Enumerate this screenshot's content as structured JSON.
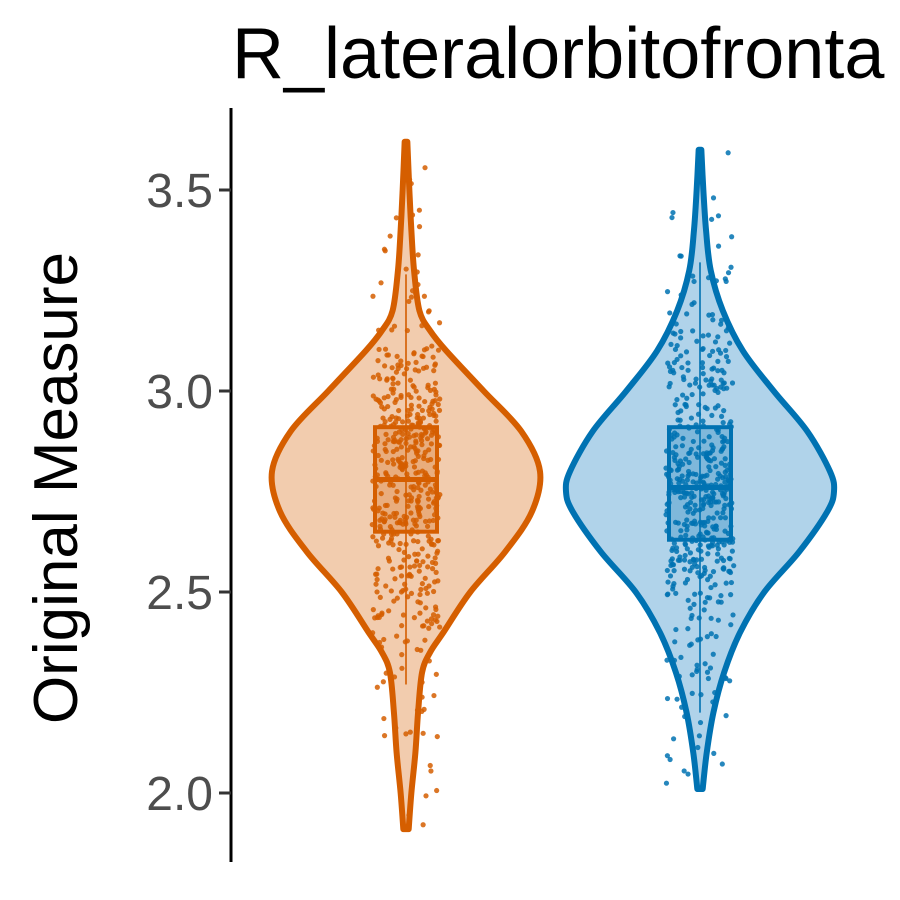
{
  "chart_data": {
    "type": "violin",
    "title": "R_lateralorbitofronta",
    "xlabel": "",
    "ylabel": "Original Measure",
    "ylim": [
      1.88,
      3.7
    ],
    "yticks": [
      2.0,
      2.5,
      3.0,
      3.5
    ],
    "ytick_labels": [
      "2.0",
      "2.5",
      "3.0",
      "3.5"
    ],
    "grid": false,
    "legend": "none",
    "series": [
      {
        "min": 1.91,
        "q1": 2.65,
        "median": 2.78,
        "q3": 2.91,
        "max": 3.62,
        "whisker_low": 2.27,
        "whisker_high": 3.29,
        "outline_color": "#D55E00",
        "fill_color": "#F2CCAE",
        "point_color": "#D55E00",
        "density": [
          [
            1.91,
            0.02
          ],
          [
            2.0,
            0.04
          ],
          [
            2.1,
            0.07
          ],
          [
            2.2,
            0.09
          ],
          [
            2.3,
            0.12
          ],
          [
            2.35,
            0.18
          ],
          [
            2.4,
            0.28
          ],
          [
            2.5,
            0.48
          ],
          [
            2.6,
            0.74
          ],
          [
            2.7,
            0.94
          ],
          [
            2.8,
            1.0
          ],
          [
            2.9,
            0.86
          ],
          [
            3.0,
            0.58
          ],
          [
            3.1,
            0.3
          ],
          [
            3.15,
            0.18
          ],
          [
            3.2,
            0.1
          ],
          [
            3.3,
            0.06
          ],
          [
            3.4,
            0.04
          ],
          [
            3.5,
            0.025
          ],
          [
            3.62,
            0.01
          ]
        ]
      },
      {
        "min": 2.01,
        "q1": 2.63,
        "median": 2.76,
        "q3": 2.91,
        "max": 3.6,
        "whisker_low": 2.2,
        "whisker_high": 3.32,
        "outline_color": "#0072B2",
        "fill_color": "#B0D3EA",
        "point_color": "#0072B2",
        "density": [
          [
            2.01,
            0.02
          ],
          [
            2.1,
            0.05
          ],
          [
            2.2,
            0.1
          ],
          [
            2.3,
            0.18
          ],
          [
            2.4,
            0.3
          ],
          [
            2.5,
            0.48
          ],
          [
            2.6,
            0.74
          ],
          [
            2.7,
            0.95
          ],
          [
            2.75,
            1.0
          ],
          [
            2.8,
            0.97
          ],
          [
            2.9,
            0.8
          ],
          [
            3.0,
            0.55
          ],
          [
            3.1,
            0.32
          ],
          [
            3.2,
            0.17
          ],
          [
            3.3,
            0.08
          ],
          [
            3.4,
            0.045
          ],
          [
            3.5,
            0.025
          ],
          [
            3.6,
            0.01
          ]
        ]
      }
    ]
  }
}
